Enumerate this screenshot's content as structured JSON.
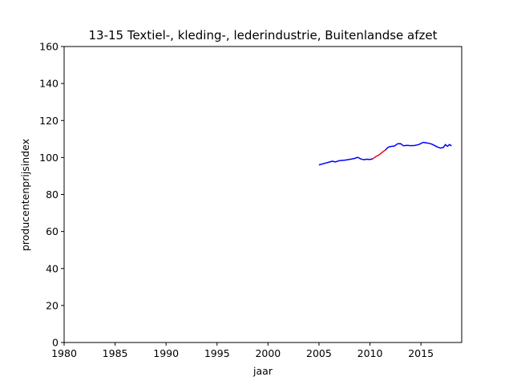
{
  "chart_data": {
    "type": "line",
    "title": "13-15 Textiel-, kleding-, lederindustrie, Buitenlandse afzet",
    "xlabel": "jaar",
    "ylabel": "producentenprijsindex",
    "xlim": [
      1980,
      2019
    ],
    "ylim": [
      0,
      160
    ],
    "xticks": [
      "1980",
      "1985",
      "1990",
      "1995",
      "2000",
      "2005",
      "2010",
      "2015"
    ],
    "yticks": [
      "0",
      "20",
      "40",
      "60",
      "80",
      "100",
      "120",
      "140",
      "160"
    ],
    "grid": false,
    "legend": "none",
    "series": [
      {
        "color": "#0000ff",
        "x": [
          2005.0,
          2005.5,
          2006.0,
          2006.3,
          2006.6,
          2007.0,
          2007.5,
          2008.0,
          2008.5,
          2008.8,
          2009.1,
          2009.4,
          2009.7,
          2010.0,
          2010.3
        ],
        "values": [
          96.0,
          96.8,
          97.5,
          98.0,
          97.6,
          98.3,
          98.5,
          99.0,
          99.5,
          100.1,
          99.2,
          98.8,
          99.1,
          98.9,
          99.4
        ]
      },
      {
        "color": "#ff0000",
        "x": [
          2010.3,
          2010.6,
          2010.9,
          2011.2,
          2011.5
        ],
        "values": [
          99.4,
          100.6,
          101.4,
          102.8,
          104.0
        ]
      },
      {
        "color": "#0000ff",
        "x": [
          2011.5,
          2011.8,
          2012.1,
          2012.4,
          2012.7,
          2013.0,
          2013.3,
          2013.6,
          2014.0,
          2014.4,
          2014.8,
          2015.2,
          2015.6,
          2016.0,
          2016.3,
          2016.6,
          2016.9,
          2017.2,
          2017.4,
          2017.6,
          2017.8,
          2018.0
        ],
        "values": [
          104.0,
          105.6,
          106.0,
          106.2,
          107.4,
          107.5,
          106.3,
          106.6,
          106.4,
          106.5,
          107.0,
          108.2,
          107.9,
          107.4,
          106.6,
          105.7,
          105.1,
          105.4,
          107.0,
          106.0,
          107.0,
          106.3
        ]
      }
    ]
  }
}
